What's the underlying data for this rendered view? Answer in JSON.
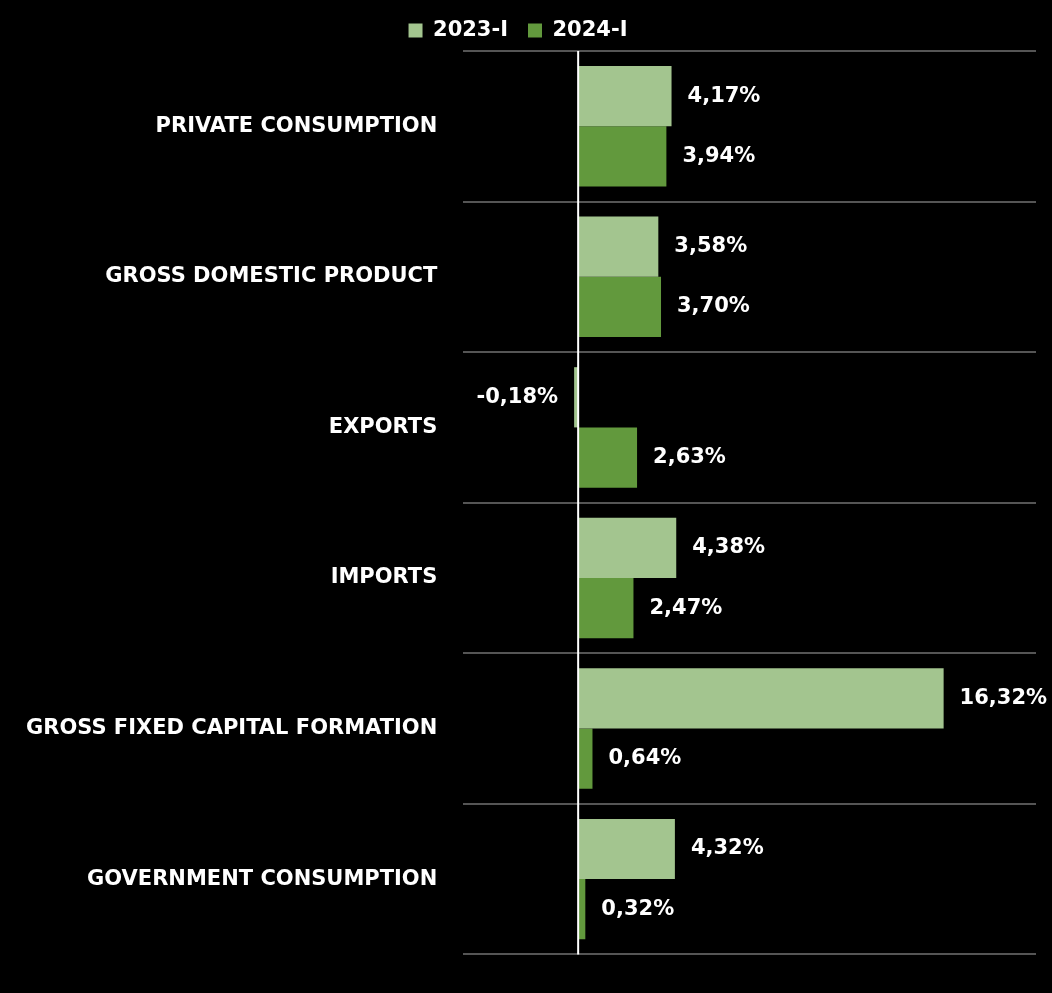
{
  "chart_data": {
    "type": "bar",
    "orientation": "horizontal",
    "categories": [
      "PRIVATE CONSUMPTION",
      "GROSS DOMESTIC PRODUCT",
      "EXPORTS",
      "IMPORTS",
      "GROSS FIXED CAPITAL FORMATION",
      "GOVERNMENT CONSUMPTION"
    ],
    "series": [
      {
        "name": "2023-I",
        "color": "#a3c58f",
        "values": [
          4.17,
          3.58,
          -0.18,
          4.38,
          16.32,
          4.32
        ],
        "value_labels": [
          "4,17%",
          "3,58%",
          "-0,18%",
          "4,38%",
          "16,32%",
          "4,32%"
        ]
      },
      {
        "name": "2024-I",
        "color": "#62993d",
        "values": [
          3.94,
          3.7,
          2.63,
          2.47,
          0.64,
          0.32
        ],
        "value_labels": [
          "3,94%",
          "3,70%",
          "2,63%",
          "2,47%",
          "0,64%",
          "0,32%"
        ]
      }
    ],
    "legend": "top",
    "grid": "y",
    "tick_labels": "y"
  }
}
